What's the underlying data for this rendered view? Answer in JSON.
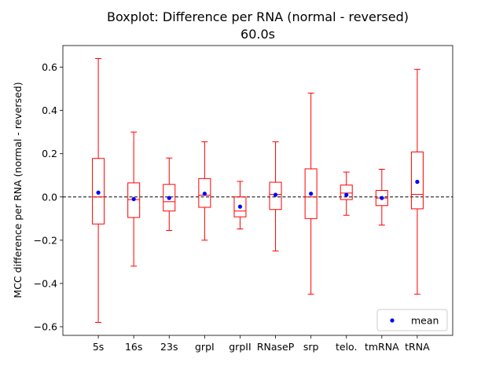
{
  "chart_data": {
    "type": "boxplot",
    "title": "Boxplot: Difference per RNA (normal - reversed)",
    "subtitle": "60.0s",
    "xlabel": "",
    "ylabel": "MCC difference per RNA (normal - reversed)",
    "ylim": [
      -0.64,
      0.7
    ],
    "yticks": [
      -0.6,
      -0.4,
      -0.2,
      0.0,
      0.2,
      0.4,
      0.6
    ],
    "ytick_labels": [
      "−0.6",
      "−0.4",
      "−0.2",
      "0.0",
      "0.2",
      "0.4",
      "0.6"
    ],
    "reference_line": 0.0,
    "grid": false,
    "legend": {
      "position": "lower right",
      "entries": [
        "mean"
      ]
    },
    "colors": {
      "box": "#ff0000",
      "mean": "#0000ff",
      "reference": "#000000"
    },
    "categories": [
      "5s",
      "16s",
      "23s",
      "grpI",
      "grpII",
      "RNaseP",
      "srp",
      "telo.",
      "tmRNA",
      "tRNA"
    ],
    "boxes": [
      {
        "whisker_low": -0.58,
        "q1": -0.125,
        "median": 0.0,
        "q3": 0.178,
        "whisker_high": 0.64,
        "mean": 0.02
      },
      {
        "whisker_low": -0.32,
        "q1": -0.095,
        "median": -0.012,
        "q3": 0.065,
        "whisker_high": 0.3,
        "mean": -0.01
      },
      {
        "whisker_low": -0.155,
        "q1": -0.065,
        "median": -0.022,
        "q3": 0.058,
        "whisker_high": 0.18,
        "mean": -0.005
      },
      {
        "whisker_low": -0.2,
        "q1": -0.048,
        "median": 0.008,
        "q3": 0.085,
        "whisker_high": 0.255,
        "mean": 0.015
      },
      {
        "whisker_low": -0.148,
        "q1": -0.092,
        "median": -0.065,
        "q3": 0.0,
        "whisker_high": 0.072,
        "mean": -0.045
      },
      {
        "whisker_low": -0.25,
        "q1": -0.058,
        "median": 0.012,
        "q3": 0.068,
        "whisker_high": 0.255,
        "mean": 0.01
      },
      {
        "whisker_low": -0.45,
        "q1": -0.1,
        "median": 0.0,
        "q3": 0.13,
        "whisker_high": 0.48,
        "mean": 0.015
      },
      {
        "whisker_low": -0.085,
        "q1": -0.012,
        "median": 0.018,
        "q3": 0.055,
        "whisker_high": 0.115,
        "mean": 0.01
      },
      {
        "whisker_low": -0.13,
        "q1": -0.04,
        "median": -0.005,
        "q3": 0.03,
        "whisker_high": 0.128,
        "mean": -0.005
      },
      {
        "whisker_low": -0.45,
        "q1": -0.055,
        "median": 0.012,
        "q3": 0.208,
        "whisker_high": 0.59,
        "mean": 0.07
      }
    ]
  }
}
